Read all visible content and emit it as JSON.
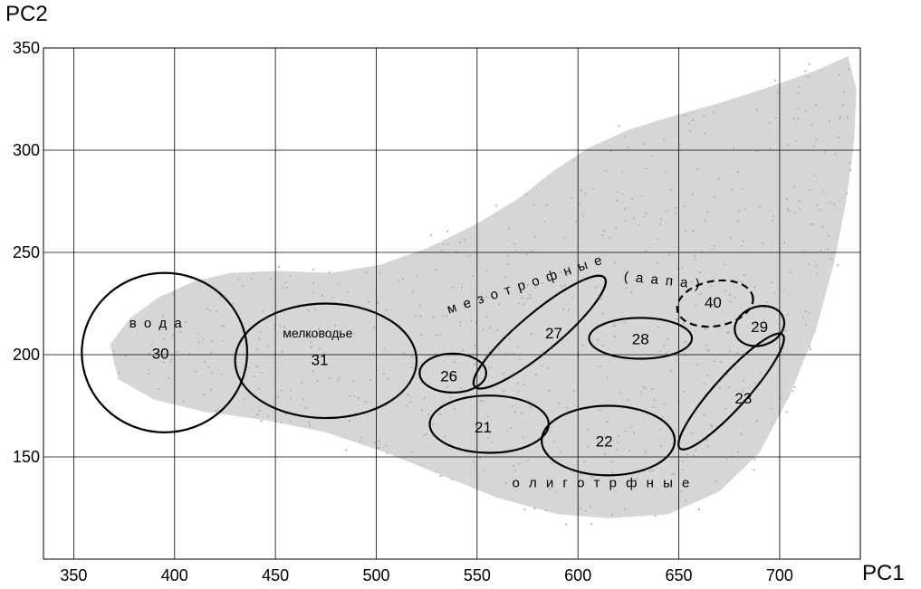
{
  "chart_data": {
    "type": "scatter",
    "xlabel": "PC1",
    "ylabel": "PC2",
    "xlim": [
      335,
      740
    ],
    "ylim": [
      100,
      350
    ],
    "xticks": [
      350,
      400,
      450,
      500,
      550,
      600,
      650,
      700
    ],
    "yticks": [
      150,
      200,
      250,
      300,
      350
    ],
    "grid": true,
    "point_color": "#b4b4b4",
    "cloud_polygon": [
      [
        368,
        205
      ],
      [
        378,
        218
      ],
      [
        392,
        228
      ],
      [
        410,
        236
      ],
      [
        428,
        240
      ],
      [
        452,
        241
      ],
      [
        478,
        240
      ],
      [
        502,
        244
      ],
      [
        525,
        252
      ],
      [
        548,
        263
      ],
      [
        570,
        276
      ],
      [
        588,
        290
      ],
      [
        605,
        301
      ],
      [
        625,
        310
      ],
      [
        648,
        317
      ],
      [
        670,
        323
      ],
      [
        695,
        331
      ],
      [
        718,
        339
      ],
      [
        734,
        346
      ],
      [
        738,
        330
      ],
      [
        737,
        305
      ],
      [
        733,
        275
      ],
      [
        727,
        245
      ],
      [
        718,
        212
      ],
      [
        705,
        180
      ],
      [
        690,
        152
      ],
      [
        670,
        133
      ],
      [
        645,
        122
      ],
      [
        615,
        120
      ],
      [
        590,
        122
      ],
      [
        560,
        130
      ],
      [
        535,
        140
      ],
      [
        505,
        152
      ],
      [
        475,
        162
      ],
      [
        445,
        168
      ],
      [
        415,
        172
      ],
      [
        390,
        178
      ],
      [
        372,
        188
      ]
    ],
    "ellipses": [
      {
        "id": "30",
        "cx": 395,
        "cy": 201,
        "rx": 41,
        "ry": 39,
        "angle": 0,
        "dashed": false
      },
      {
        "id": "31",
        "cx": 475,
        "cy": 197,
        "rx": 45,
        "ry": 28,
        "angle": 0,
        "dashed": false
      },
      {
        "id": "26",
        "cx": 538,
        "cy": 191,
        "rx": 16.5,
        "ry": 9.5,
        "angle": 0,
        "dashed": false
      },
      {
        "id": "27",
        "cx": 581,
        "cy": 211,
        "rx": 42,
        "ry": 9.5,
        "angle": -40,
        "dashed": false
      },
      {
        "id": "28",
        "cx": 631,
        "cy": 208,
        "rx": 25.5,
        "ry": 10,
        "angle": 0,
        "dashed": false
      },
      {
        "id": "21",
        "cx": 556,
        "cy": 166,
        "rx": 29.5,
        "ry": 14,
        "angle": 0,
        "dashed": false
      },
      {
        "id": "22",
        "cx": 615,
        "cy": 158,
        "rx": 33,
        "ry": 17,
        "angle": 0,
        "dashed": false
      },
      {
        "id": "23",
        "cx": 676,
        "cy": 182,
        "rx": 38,
        "ry": 8,
        "angle": -48,
        "dashed": false
      },
      {
        "id": "40",
        "cx": 668,
        "cy": 225,
        "rx": 19,
        "ry": 11,
        "angle": -10,
        "dashed": true
      },
      {
        "id": "29",
        "cx": 690,
        "cy": 214,
        "rx": 12.5,
        "ry": 9.5,
        "angle": -18,
        "dashed": false
      }
    ],
    "annotations": [
      {
        "text": "30",
        "x": 393,
        "y": 200,
        "size": 17,
        "spacing": 0,
        "rotate": 0
      },
      {
        "text": "31",
        "x": 472,
        "y": 197,
        "size": 17,
        "spacing": 0,
        "rotate": 0
      },
      {
        "text": "26",
        "x": 536,
        "y": 189,
        "size": 17,
        "spacing": 0,
        "rotate": 0
      },
      {
        "text": "27",
        "x": 588,
        "y": 210,
        "size": 17,
        "spacing": 0,
        "rotate": 0
      },
      {
        "text": "28",
        "x": 631,
        "y": 207,
        "size": 17,
        "spacing": 0,
        "rotate": 0
      },
      {
        "text": "21",
        "x": 553,
        "y": 164,
        "size": 17,
        "spacing": 0,
        "rotate": 0
      },
      {
        "text": "22",
        "x": 613,
        "y": 157,
        "size": 17,
        "spacing": 0,
        "rotate": 0
      },
      {
        "text": "23",
        "x": 682,
        "y": 178,
        "size": 17,
        "spacing": 0,
        "rotate": 0
      },
      {
        "text": "40",
        "x": 667,
        "y": 225,
        "size": 17,
        "spacing": 0,
        "rotate": 0
      },
      {
        "text": "29",
        "x": 690,
        "y": 213,
        "size": 17,
        "spacing": 0,
        "rotate": 0
      },
      {
        "text": "в о д а",
        "x": 391,
        "y": 215,
        "size": 15,
        "spacing": 2,
        "rotate": 0
      },
      {
        "text": "мелководье",
        "x": 471,
        "y": 210,
        "size": 14,
        "spacing": 0,
        "rotate": 0
      },
      {
        "text": "м е з о т р о ф н ы е",
        "x": 574,
        "y": 234,
        "size": 15,
        "spacing": 2,
        "rotate": -18
      },
      {
        "text": "( а а п а )",
        "x": 642,
        "y": 236,
        "size": 15,
        "spacing": 2,
        "rotate": 6
      },
      {
        "text": "о л и г о т р ф н ы е",
        "x": 612,
        "y": 137,
        "size": 15,
        "spacing": 3,
        "rotate": 0
      }
    ]
  }
}
